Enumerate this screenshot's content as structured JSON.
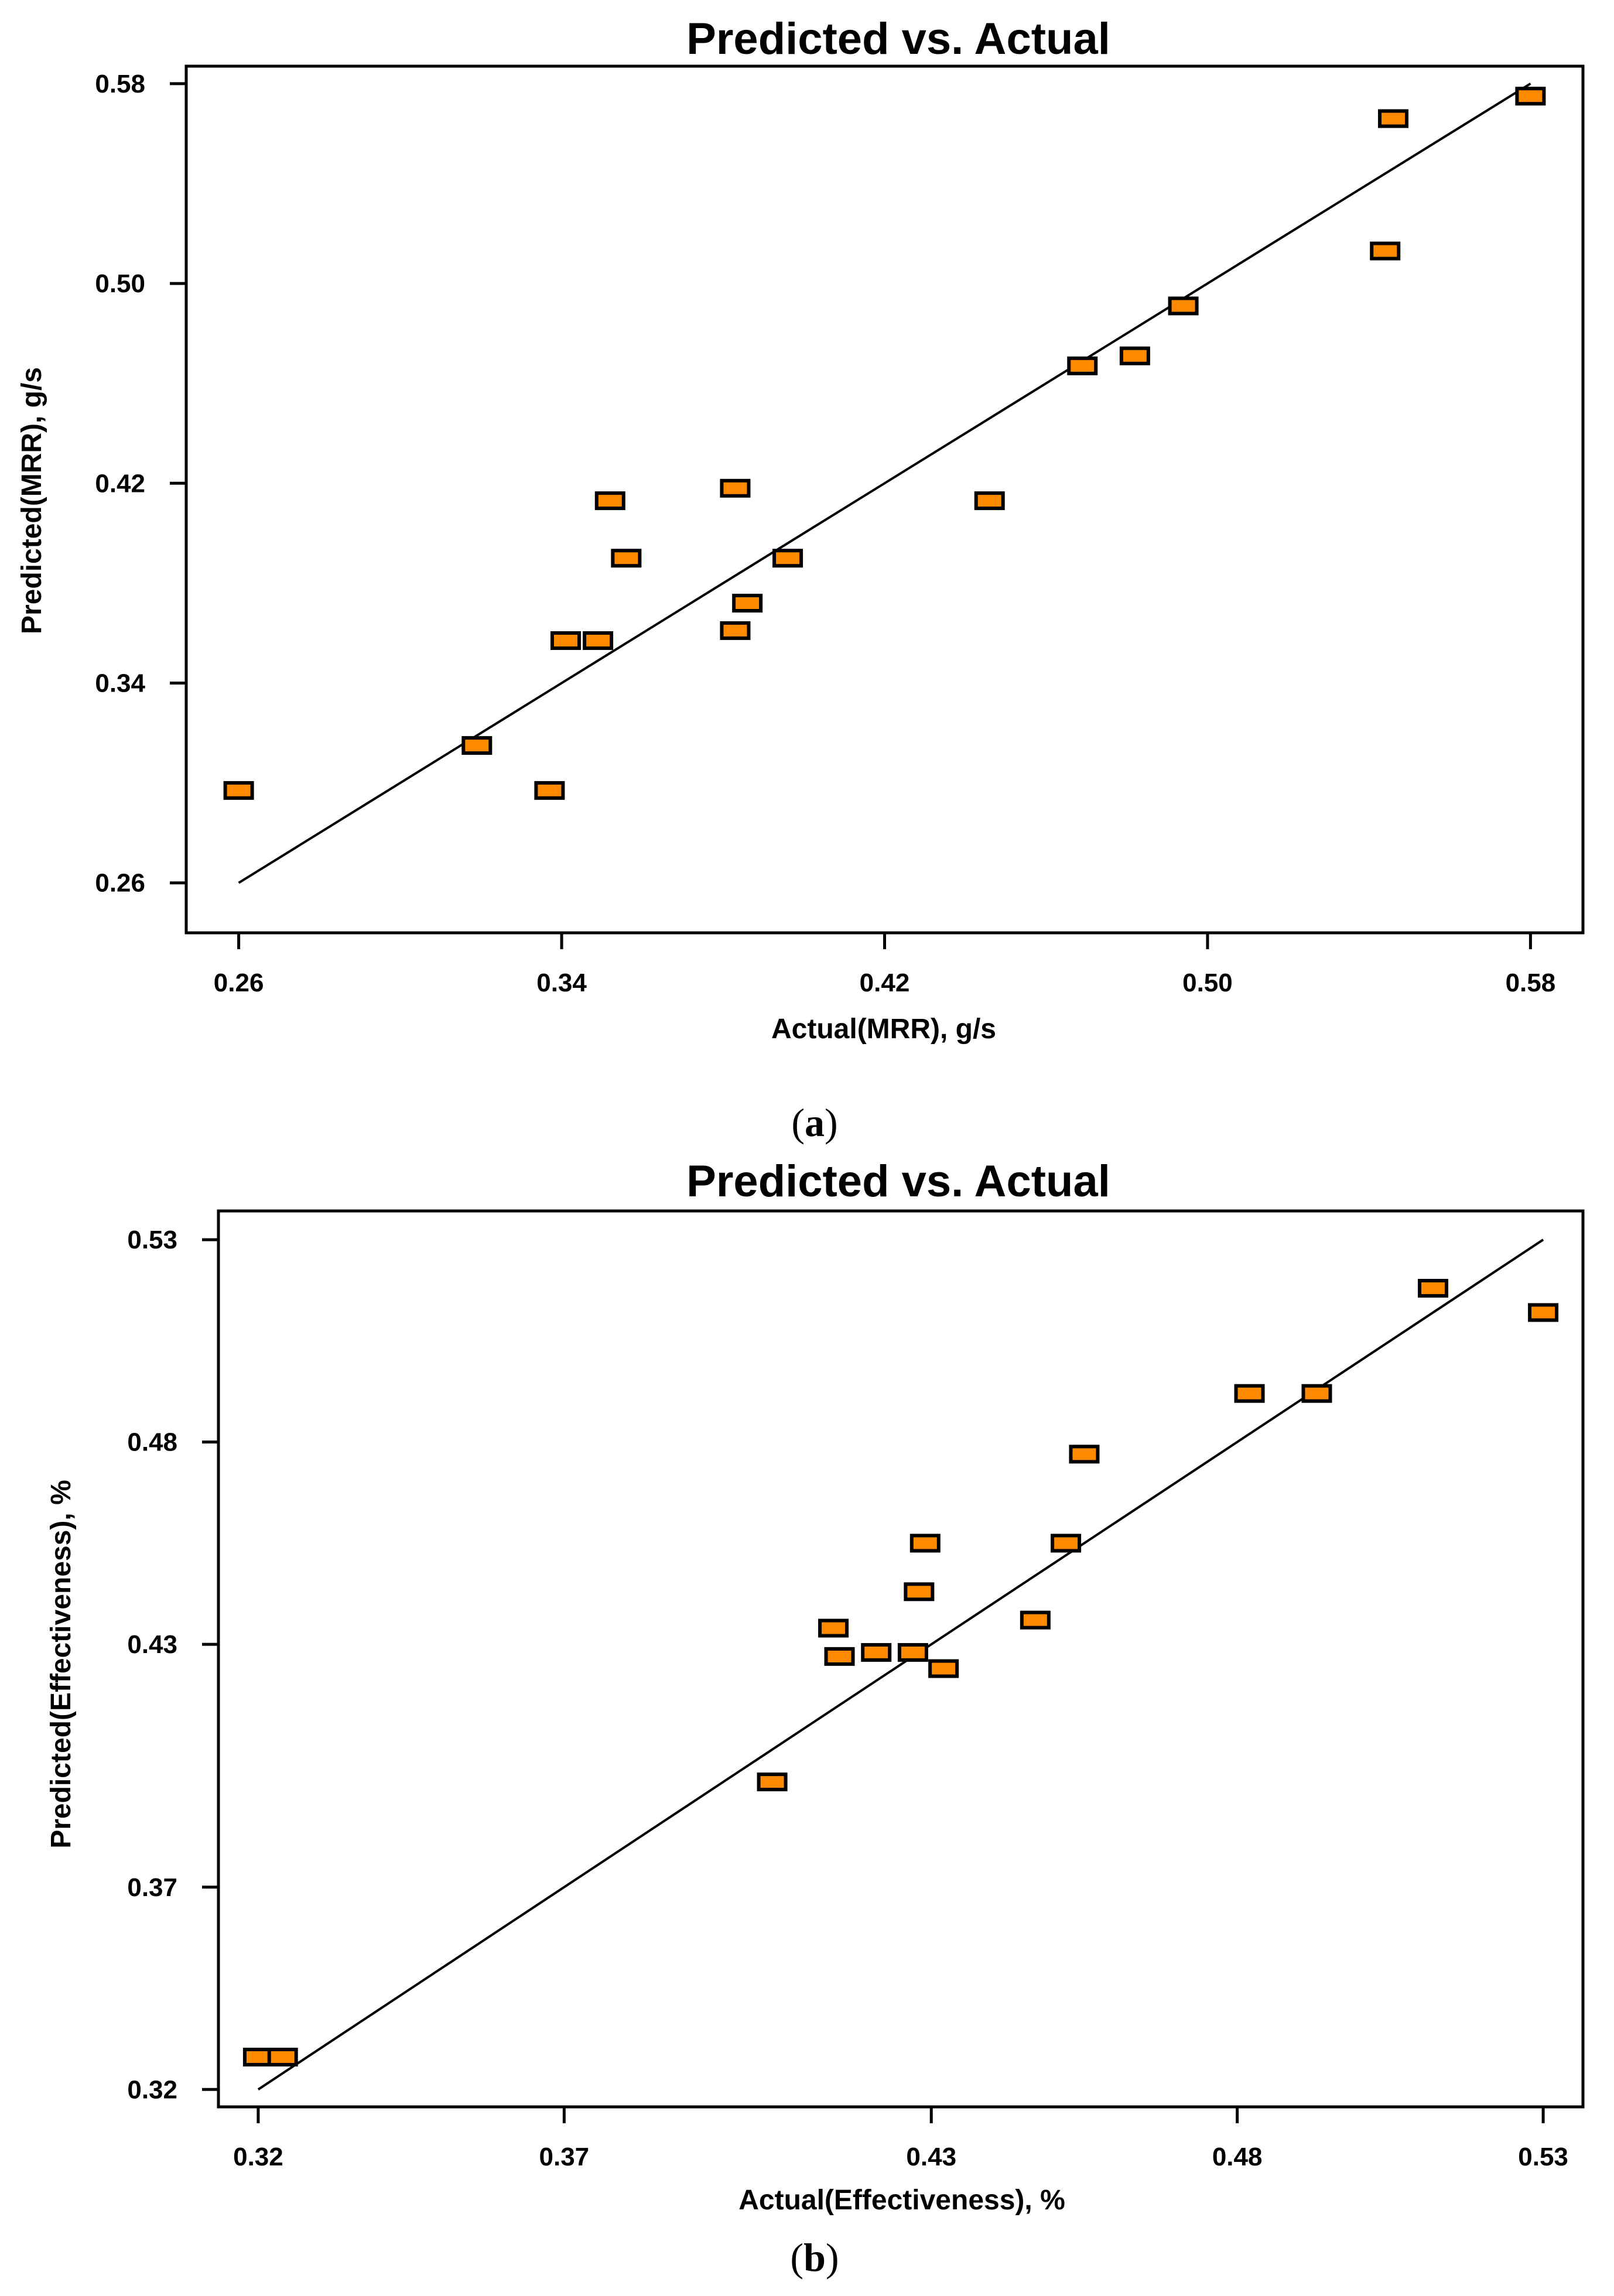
{
  "colors": {
    "point_fill": "#ff8a00",
    "point_stroke": "#000000",
    "line": "#000000"
  },
  "chart_data": [
    {
      "type": "scatter",
      "title": "Predicted vs. Actual",
      "xlabel": "Actual(MRR), g/s",
      "ylabel": "Predicted(MRR), g/s",
      "caption": "a",
      "xlim": [
        0.247,
        0.593
      ],
      "ylim": [
        0.24,
        0.587
      ],
      "xticks": [
        0.26,
        0.34,
        0.42,
        0.5,
        0.58
      ],
      "yticks": [
        0.26,
        0.34,
        0.42,
        0.5,
        0.58
      ],
      "tick_labels_x": [
        "0.26",
        "0.34",
        "0.42",
        "0.50",
        "0.58"
      ],
      "tick_labels_y": [
        "0.26",
        "0.34",
        "0.42",
        "0.50",
        "0.58"
      ],
      "fit_line": [
        [
          0.26,
          0.26
        ],
        [
          0.58,
          0.58
        ]
      ],
      "x": [
        0.26,
        0.319,
        0.337,
        0.341,
        0.349,
        0.352,
        0.356,
        0.383,
        0.383,
        0.386,
        0.396,
        0.446,
        0.469,
        0.482,
        0.494,
        0.544,
        0.546,
        0.58
      ],
      "y": [
        0.297,
        0.315,
        0.297,
        0.357,
        0.357,
        0.413,
        0.39,
        0.361,
        0.418,
        0.372,
        0.39,
        0.413,
        0.467,
        0.471,
        0.491,
        0.513,
        0.566,
        0.575
      ]
    },
    {
      "type": "scatter",
      "title": "Predicted vs. Actual",
      "xlabel": "Actual(Effectiveness), %",
      "ylabel": "Predicted(Effectiveness), %",
      "caption": "b",
      "xlim": [
        0.3135,
        0.5365
      ],
      "ylim": [
        0.3157,
        0.5371
      ],
      "xticks": [
        0.32,
        0.37,
        0.43,
        0.48,
        0.53
      ],
      "yticks": [
        0.32,
        0.37,
        0.43,
        0.48,
        0.53
      ],
      "tick_labels_x": [
        "0.32",
        "0.37",
        "0.43",
        "0.48",
        "0.53"
      ],
      "tick_labels_y": [
        "0.32",
        "0.37",
        "0.43",
        "0.48",
        "0.53"
      ],
      "fit_line": [
        [
          0.32,
          0.32
        ],
        [
          0.53,
          0.53
        ]
      ],
      "x": [
        0.32,
        0.324,
        0.404,
        0.414,
        0.415,
        0.421,
        0.427,
        0.428,
        0.429,
        0.432,
        0.447,
        0.452,
        0.455,
        0.482,
        0.493,
        0.512,
        0.53
      ],
      "y": [
        0.328,
        0.328,
        0.396,
        0.434,
        0.427,
        0.428,
        0.428,
        0.443,
        0.455,
        0.424,
        0.436,
        0.455,
        0.477,
        0.492,
        0.492,
        0.518,
        0.512
      ]
    }
  ]
}
